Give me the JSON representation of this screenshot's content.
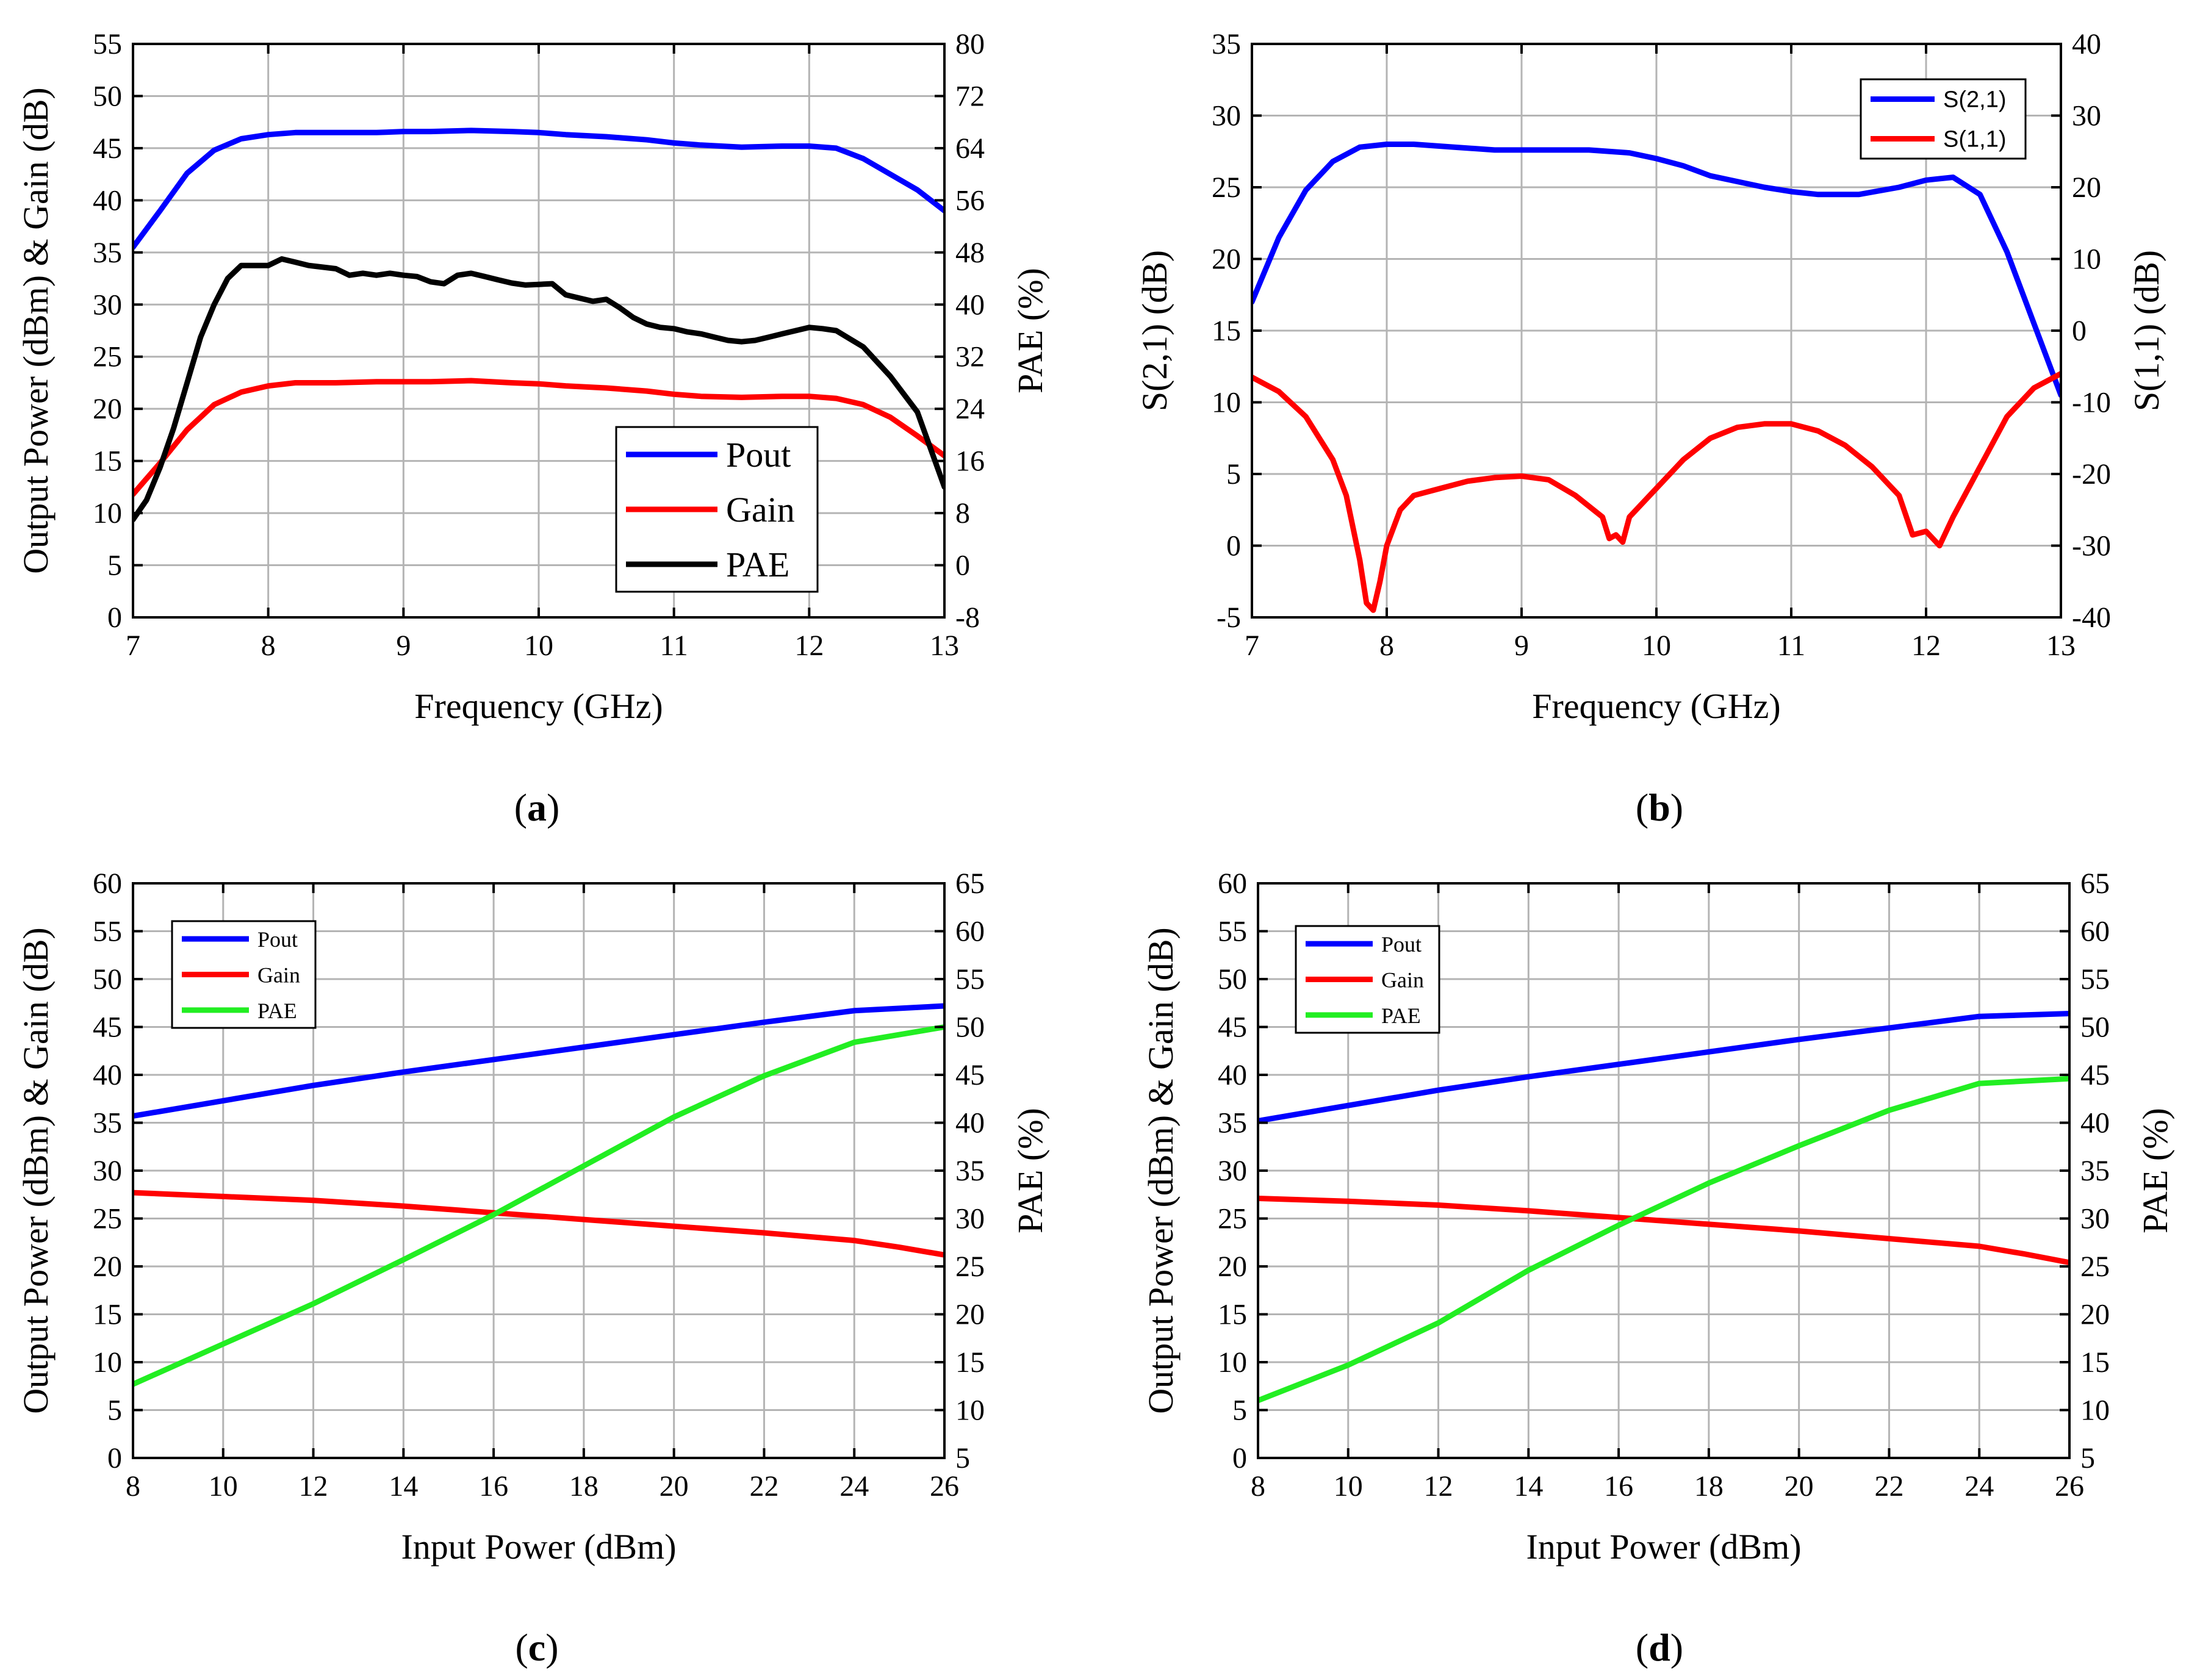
{
  "chart_data": [
    {
      "id": "a",
      "type": "line",
      "panel_label_prefix": "(",
      "panel_label": "a",
      "panel_label_suffix": ")",
      "xlabel": "Frequency (GHz)",
      "ylabel_left": "Output Power (dBm) & Gain (dB)",
      "ylabel_right": "PAE (%)",
      "xlim": [
        7,
        13
      ],
      "ylim_left": [
        0,
        55
      ],
      "ylim_right": [
        -8,
        80
      ],
      "x_ticks": [
        "7",
        "8",
        "9",
        "10",
        "11",
        "12",
        "13"
      ],
      "y_ticks_left": [
        "0",
        "5",
        "10",
        "15",
        "20",
        "25",
        "30",
        "35",
        "40",
        "45",
        "50",
        "55"
      ],
      "y_ticks_right": [
        "-8",
        "0",
        "8",
        "16",
        "24",
        "32",
        "40",
        "48",
        "56",
        "64",
        "72",
        "80"
      ],
      "grid": true,
      "legend_position": "bottom-right",
      "series": [
        {
          "name": "Pout",
          "color": "#0000ff",
          "axis": "left",
          "x": [
            7,
            7.2,
            7.4,
            7.6,
            7.8,
            8,
            8.2,
            8.5,
            8.8,
            9,
            9.2,
            9.5,
            9.8,
            10,
            10.2,
            10.5,
            10.8,
            11,
            11.2,
            11.5,
            11.8,
            12,
            12.2,
            12.4,
            12.6,
            12.8,
            13
          ],
          "y": [
            35.5,
            39,
            42.6,
            44.8,
            45.9,
            46.3,
            46.5,
            46.5,
            46.5,
            46.6,
            46.6,
            46.7,
            46.6,
            46.5,
            46.3,
            46.1,
            45.8,
            45.5,
            45.3,
            45.1,
            45.2,
            45.2,
            45.0,
            44.0,
            42.5,
            41.0,
            39.0
          ]
        },
        {
          "name": "Gain",
          "color": "#ff0000",
          "axis": "left",
          "x": [
            7,
            7.2,
            7.4,
            7.6,
            7.8,
            8,
            8.2,
            8.5,
            8.8,
            9,
            9.2,
            9.5,
            9.8,
            10,
            10.2,
            10.5,
            10.8,
            11,
            11.2,
            11.5,
            11.8,
            12,
            12.2,
            12.4,
            12.6,
            12.8,
            13
          ],
          "y": [
            11.8,
            14.8,
            18.0,
            20.4,
            21.6,
            22.2,
            22.5,
            22.5,
            22.6,
            22.6,
            22.6,
            22.7,
            22.5,
            22.4,
            22.2,
            22.0,
            21.7,
            21.4,
            21.2,
            21.1,
            21.2,
            21.2,
            21.0,
            20.4,
            19.2,
            17.4,
            15.5
          ]
        },
        {
          "name": "PAE",
          "color": "#000000",
          "axis": "right",
          "x": [
            7,
            7.1,
            7.2,
            7.3,
            7.4,
            7.5,
            7.6,
            7.7,
            7.8,
            7.9,
            8,
            8.1,
            8.2,
            8.3,
            8.5,
            8.6,
            8.7,
            8.8,
            8.9,
            9,
            9.1,
            9.2,
            9.3,
            9.4,
            9.5,
            9.6,
            9.7,
            9.8,
            9.9,
            10,
            10.1,
            10.2,
            10.3,
            10.4,
            10.5,
            10.6,
            10.7,
            10.8,
            10.9,
            11,
            11.1,
            11.2,
            11.3,
            11.4,
            11.5,
            11.6,
            11.7,
            11.8,
            11.9,
            12,
            12.1,
            12.2,
            12.4,
            12.6,
            12.8,
            13
          ],
          "y": [
            7,
            10,
            15,
            21,
            28,
            35,
            40,
            44,
            46,
            46,
            46,
            47,
            46.5,
            46,
            45.5,
            44.5,
            44.8,
            44.5,
            44.8,
            44.5,
            44.3,
            43.5,
            43.2,
            44.5,
            44.8,
            44.3,
            43.8,
            43.3,
            43.0,
            43.1,
            43.2,
            41.5,
            41.0,
            40.5,
            40.8,
            39.5,
            38.0,
            37.0,
            36.5,
            36.3,
            35.8,
            35.5,
            35.0,
            34.5,
            34.3,
            34.5,
            35.0,
            35.5,
            36.0,
            36.5,
            36.3,
            36.0,
            33.5,
            29.0,
            23.5,
            12.0
          ]
        }
      ]
    },
    {
      "id": "b",
      "type": "line",
      "panel_label_prefix": "(",
      "panel_label": "b",
      "panel_label_suffix": ")",
      "xlabel": "Frequency (GHz)",
      "ylabel_left": "S(2,1) (dB)",
      "ylabel_right": "S(1,1) (dB)",
      "xlim": [
        7,
        13
      ],
      "ylim_left": [
        -5,
        35
      ],
      "ylim_right": [
        -40,
        40
      ],
      "x_ticks": [
        "7",
        "8",
        "9",
        "10",
        "11",
        "12",
        "13"
      ],
      "y_ticks_left": [
        "-5",
        "0",
        "5",
        "10",
        "15",
        "20",
        "25",
        "30",
        "35"
      ],
      "y_ticks_right": [
        "-40",
        "-30",
        "-20",
        "-10",
        "0",
        "10",
        "20",
        "30",
        "40"
      ],
      "grid": true,
      "legend_position": "top-right",
      "series": [
        {
          "name": "S(2,1)",
          "color": "#0000ff",
          "axis": "left",
          "x": [
            7,
            7.2,
            7.4,
            7.6,
            7.8,
            8,
            8.2,
            8.5,
            8.8,
            9,
            9.2,
            9.5,
            9.8,
            10,
            10.2,
            10.4,
            10.6,
            10.8,
            11,
            11.2,
            11.5,
            11.8,
            12,
            12.2,
            12.4,
            12.6,
            12.8,
            13
          ],
          "y": [
            17,
            21.5,
            24.8,
            26.8,
            27.8,
            28.0,
            28.0,
            27.8,
            27.6,
            27.6,
            27.6,
            27.6,
            27.4,
            27.0,
            26.5,
            25.8,
            25.4,
            25.0,
            24.7,
            24.5,
            24.5,
            25.0,
            25.5,
            25.7,
            24.5,
            20.5,
            15.5,
            10.5
          ]
        },
        {
          "name": "S(1,1)",
          "color": "#ff0000",
          "axis": "right",
          "x": [
            7,
            7.2,
            7.4,
            7.6,
            7.7,
            7.8,
            7.85,
            7.9,
            7.95,
            8.0,
            8.1,
            8.2,
            8.4,
            8.6,
            8.8,
            9.0,
            9.2,
            9.4,
            9.6,
            9.65,
            9.7,
            9.75,
            9.8,
            10.0,
            10.2,
            10.4,
            10.6,
            10.8,
            11.0,
            11.2,
            11.4,
            11.6,
            11.8,
            11.9,
            12.0,
            12.05,
            12.1,
            12.2,
            12.4,
            12.6,
            12.8,
            13
          ],
          "y": [
            -6.5,
            -8.5,
            -12,
            -18,
            -23,
            -32,
            -38,
            -39,
            -35,
            -30,
            -25,
            -23,
            -22,
            -21,
            -20.5,
            -20.3,
            -20.8,
            -23,
            -26,
            -29,
            -28.5,
            -29.5,
            -26,
            -22,
            -18,
            -15,
            -13.5,
            -13,
            -13,
            -14,
            -16,
            -19,
            -23,
            -28.5,
            -28.0,
            -29,
            -30,
            -26,
            -19,
            -12,
            -8,
            -6
          ]
        }
      ]
    },
    {
      "id": "c",
      "type": "line",
      "panel_label_prefix": "(",
      "panel_label": "c",
      "panel_label_suffix": ")",
      "xlabel": "Input Power (dBm)",
      "ylabel_left": "Output Power (dBm) & Gain (dB)",
      "ylabel_right": "PAE (%)",
      "xlim": [
        8,
        26
      ],
      "ylim_left": [
        0,
        60
      ],
      "ylim_right": [
        5,
        65
      ],
      "x_ticks": [
        "8",
        "10",
        "12",
        "14",
        "16",
        "18",
        "20",
        "22",
        "24",
        "26"
      ],
      "y_ticks_left": [
        "0",
        "5",
        "10",
        "15",
        "20",
        "25",
        "30",
        "35",
        "40",
        "45",
        "50",
        "55",
        "60"
      ],
      "y_ticks_right": [
        "5",
        "10",
        "15",
        "20",
        "25",
        "30",
        "35",
        "40",
        "45",
        "50",
        "55",
        "60",
        "65"
      ],
      "grid": true,
      "legend_position": "top-left",
      "series": [
        {
          "name": "Pout",
          "color": "#0000ff",
          "axis": "left",
          "x": [
            8,
            10,
            12,
            14,
            16,
            18,
            20,
            22,
            24,
            26
          ],
          "y": [
            35.7,
            37.3,
            38.9,
            40.3,
            41.6,
            42.9,
            44.2,
            45.5,
            46.7,
            47.2
          ]
        },
        {
          "name": "Gain",
          "color": "#ff0000",
          "axis": "left",
          "x": [
            8,
            10,
            12,
            14,
            16,
            18,
            20,
            22,
            24,
            25,
            26
          ],
          "y": [
            27.7,
            27.3,
            26.9,
            26.3,
            25.6,
            24.9,
            24.2,
            23.5,
            22.7,
            22.0,
            21.2
          ]
        },
        {
          "name": "PAE",
          "color": "#22ee22",
          "axis": "right",
          "x": [
            8,
            10,
            12,
            14,
            16,
            18,
            20,
            22,
            24,
            26
          ],
          "y": [
            12.7,
            16.9,
            21.1,
            25.7,
            30.4,
            35.5,
            40.6,
            44.9,
            48.4,
            50.0
          ]
        }
      ]
    },
    {
      "id": "d",
      "type": "line",
      "panel_label_prefix": "(",
      "panel_label": "d",
      "panel_label_suffix": ")",
      "xlabel": "Input Power (dBm)",
      "ylabel_left": "Output Power (dBm) & Gain (dB)",
      "ylabel_right": "PAE (%)",
      "xlim": [
        8,
        26
      ],
      "ylim_left": [
        0,
        60
      ],
      "ylim_right": [
        5,
        65
      ],
      "x_ticks": [
        "8",
        "10",
        "12",
        "14",
        "16",
        "18",
        "20",
        "22",
        "24",
        "26"
      ],
      "y_ticks_left": [
        "0",
        "5",
        "10",
        "15",
        "20",
        "25",
        "30",
        "35",
        "40",
        "45",
        "50",
        "55",
        "60"
      ],
      "y_ticks_right": [
        "5",
        "10",
        "15",
        "20",
        "25",
        "30",
        "35",
        "40",
        "45",
        "50",
        "55",
        "60",
        "65"
      ],
      "grid": true,
      "legend_position": "top-left",
      "series": [
        {
          "name": "Pout",
          "color": "#0000ff",
          "axis": "left",
          "x": [
            8,
            10,
            12,
            14,
            16,
            18,
            20,
            22,
            24,
            26
          ],
          "y": [
            35.2,
            36.8,
            38.4,
            39.8,
            41.1,
            42.4,
            43.7,
            44.9,
            46.1,
            46.4
          ]
        },
        {
          "name": "Gain",
          "color": "#ff0000",
          "axis": "left",
          "x": [
            8,
            10,
            12,
            14,
            16,
            18,
            20,
            22,
            24,
            25,
            26
          ],
          "y": [
            27.1,
            26.8,
            26.4,
            25.8,
            25.1,
            24.4,
            23.7,
            22.9,
            22.1,
            21.3,
            20.4
          ]
        },
        {
          "name": "PAE",
          "color": "#22ee22",
          "axis": "right",
          "x": [
            8,
            10,
            12,
            14,
            16,
            18,
            20,
            22,
            24,
            26
          ],
          "y": [
            11.0,
            14.7,
            19.1,
            24.6,
            29.3,
            33.7,
            37.6,
            41.3,
            44.1,
            44.6
          ]
        }
      ]
    }
  ]
}
